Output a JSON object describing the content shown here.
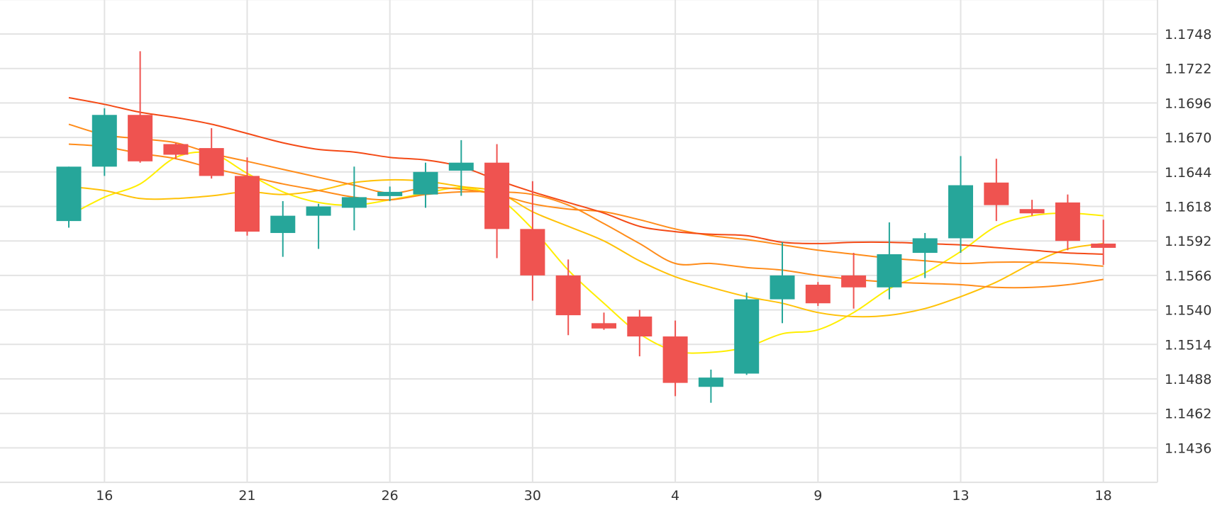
{
  "chart_data": {
    "type": "candlestick",
    "title": "",
    "xlabel": "",
    "ylabel": "",
    "grid": true,
    "ylim": [
      1.141,
      1.1774
    ],
    "y_ticks": [
      1.1748,
      1.1722,
      1.1696,
      1.167,
      1.1644,
      1.1618,
      1.1592,
      1.1566,
      1.154,
      1.1514,
      1.1488,
      1.1462,
      1.1436
    ],
    "y_tick_labels": [
      "1.1748",
      "1.1722",
      "1.1696",
      "1.1670",
      "1.1644",
      "1.1618",
      "1.1592",
      "1.1566",
      "1.1540",
      "1.1514",
      "1.1488",
      "1.1462",
      "1.1436"
    ],
    "x_ticks": [
      {
        "index": 1,
        "label": "16"
      },
      {
        "index": 5,
        "label": "21"
      },
      {
        "index": 9,
        "label": "26"
      },
      {
        "index": 13,
        "label": "30"
      },
      {
        "index": 17,
        "label": "4"
      },
      {
        "index": 21,
        "label": "9"
      },
      {
        "index": 25,
        "label": "13"
      },
      {
        "index": 29,
        "label": "18"
      }
    ],
    "colors": {
      "up": "#26a69a",
      "down": "#ef5350",
      "grid": "#e3e3e3",
      "ma": [
        "#ffee00",
        "#ffc107",
        "#ff8c1a",
        "#f44a16"
      ]
    },
    "candles": [
      {
        "o": 1.1607,
        "h": 1.1648,
        "l": 1.1602,
        "c": 1.1648
      },
      {
        "o": 1.1648,
        "h": 1.1692,
        "l": 1.1641,
        "c": 1.1687
      },
      {
        "o": 1.1687,
        "h": 1.1735,
        "l": 1.1651,
        "c": 1.1652
      },
      {
        "o": 1.1665,
        "h": 1.1666,
        "l": 1.1654,
        "c": 1.1657
      },
      {
        "o": 1.1662,
        "h": 1.1677,
        "l": 1.1639,
        "c": 1.1641
      },
      {
        "o": 1.1641,
        "h": 1.1655,
        "l": 1.1596,
        "c": 1.1599
      },
      {
        "o": 1.1598,
        "h": 1.1622,
        "l": 1.158,
        "c": 1.1611
      },
      {
        "o": 1.1611,
        "h": 1.162,
        "l": 1.1586,
        "c": 1.1618
      },
      {
        "o": 1.1617,
        "h": 1.1648,
        "l": 1.16,
        "c": 1.1625
      },
      {
        "o": 1.1629,
        "h": 1.1633,
        "l": 1.1622,
        "c": 1.1629
      },
      {
        "o": 1.1627,
        "h": 1.1651,
        "l": 1.1617,
        "c": 1.1644
      },
      {
        "o": 1.1645,
        "h": 1.1668,
        "l": 1.1626,
        "c": 1.1651
      },
      {
        "o": 1.1651,
        "h": 1.1665,
        "l": 1.1579,
        "c": 1.1601
      },
      {
        "o": 1.1601,
        "h": 1.1637,
        "l": 1.1547,
        "c": 1.1566
      },
      {
        "o": 1.1566,
        "h": 1.1578,
        "l": 1.1521,
        "c": 1.1536
      },
      {
        "o": 1.153,
        "h": 1.1538,
        "l": 1.1525,
        "c": 1.1526
      },
      {
        "o": 1.1535,
        "h": 1.154,
        "l": 1.1505,
        "c": 1.152
      },
      {
        "o": 1.152,
        "h": 1.1532,
        "l": 1.1475,
        "c": 1.1485
      },
      {
        "o": 1.1482,
        "h": 1.1495,
        "l": 1.147,
        "c": 1.1489
      },
      {
        "o": 1.1492,
        "h": 1.1553,
        "l": 1.1491,
        "c": 1.1548
      },
      {
        "o": 1.1548,
        "h": 1.1591,
        "l": 1.153,
        "c": 1.1566
      },
      {
        "o": 1.1559,
        "h": 1.1561,
        "l": 1.1543,
        "c": 1.1545
      },
      {
        "o": 1.1566,
        "h": 1.1583,
        "l": 1.1541,
        "c": 1.1557
      },
      {
        "o": 1.1557,
        "h": 1.1606,
        "l": 1.1548,
        "c": 1.1582
      },
      {
        "o": 1.1583,
        "h": 1.1598,
        "l": 1.1564,
        "c": 1.1594
      },
      {
        "o": 1.1594,
        "h": 1.1656,
        "l": 1.1583,
        "c": 1.1634
      },
      {
        "o": 1.1636,
        "h": 1.1654,
        "l": 1.1607,
        "c": 1.1619
      },
      {
        "o": 1.1616,
        "h": 1.1623,
        "l": 1.1611,
        "c": 1.1614
      },
      {
        "o": 1.1621,
        "h": 1.1627,
        "l": 1.1585,
        "c": 1.1592
      },
      {
        "o": 1.159,
        "h": 1.1608,
        "l": 1.1574,
        "c": 1.1587
      }
    ],
    "moving_averages": [
      {
        "color": "#ffee00",
        "values": [
          1.1611,
          1.1625,
          1.1635,
          1.1655,
          1.1658,
          1.1643,
          1.1629,
          1.1621,
          1.1619,
          1.1623,
          1.1628,
          1.1632,
          1.1625,
          1.1601,
          1.157,
          1.1545,
          1.1522,
          1.1509,
          1.1508,
          1.1512,
          1.1522,
          1.1525,
          1.1538,
          1.1556,
          1.1568,
          1.1584,
          1.1603,
          1.1611,
          1.1613,
          1.1611
        ]
      },
      {
        "color": "#ffc107",
        "values": [
          1.1633,
          1.163,
          1.1624,
          1.1624,
          1.1626,
          1.1629,
          1.1627,
          1.163,
          1.1636,
          1.1638,
          1.1637,
          1.1633,
          1.1629,
          1.1614,
          1.1603,
          1.1592,
          1.1577,
          1.1565,
          1.1557,
          1.155,
          1.1545,
          1.1538,
          1.1535,
          1.1536,
          1.1541,
          1.155,
          1.1561,
          1.1575,
          1.1586,
          1.159
        ]
      },
      {
        "color": "#ff8c1a",
        "values": [
          1.1665,
          1.1663,
          1.1658,
          1.1654,
          1.1647,
          1.1641,
          1.1635,
          1.163,
          1.1625,
          1.1623,
          1.1627,
          1.1629,
          1.1629,
          1.1627,
          1.1619,
          1.1605,
          1.159,
          1.1575,
          1.1575,
          1.1572,
          1.157,
          1.1566,
          1.1563,
          1.1561,
          1.156,
          1.1559,
          1.1557,
          1.1557,
          1.1559,
          1.1563
        ]
      },
      {
        "color": "#ff8c1a",
        "values": [
          1.168,
          1.1672,
          1.1669,
          1.1666,
          1.1658,
          1.1652,
          1.1646,
          1.164,
          1.1634,
          1.1628,
          1.1632,
          1.1631,
          1.1627,
          1.162,
          1.1616,
          1.1614,
          1.1608,
          1.1601,
          1.1596,
          1.1593,
          1.1589,
          1.1585,
          1.1582,
          1.1579,
          1.1577,
          1.1575,
          1.1576,
          1.1576,
          1.1575,
          1.1573
        ]
      },
      {
        "color": "#f44a16",
        "values": [
          1.17,
          1.1695,
          1.1689,
          1.1685,
          1.168,
          1.1673,
          1.1666,
          1.1661,
          1.1659,
          1.1655,
          1.1653,
          1.1648,
          1.1638,
          1.1629,
          1.1621,
          1.1613,
          1.1603,
          1.1599,
          1.1597,
          1.1596,
          1.1591,
          1.159,
          1.1591,
          1.1591,
          1.159,
          1.1589,
          1.1587,
          1.1585,
          1.1583,
          1.1582
        ]
      }
    ]
  }
}
